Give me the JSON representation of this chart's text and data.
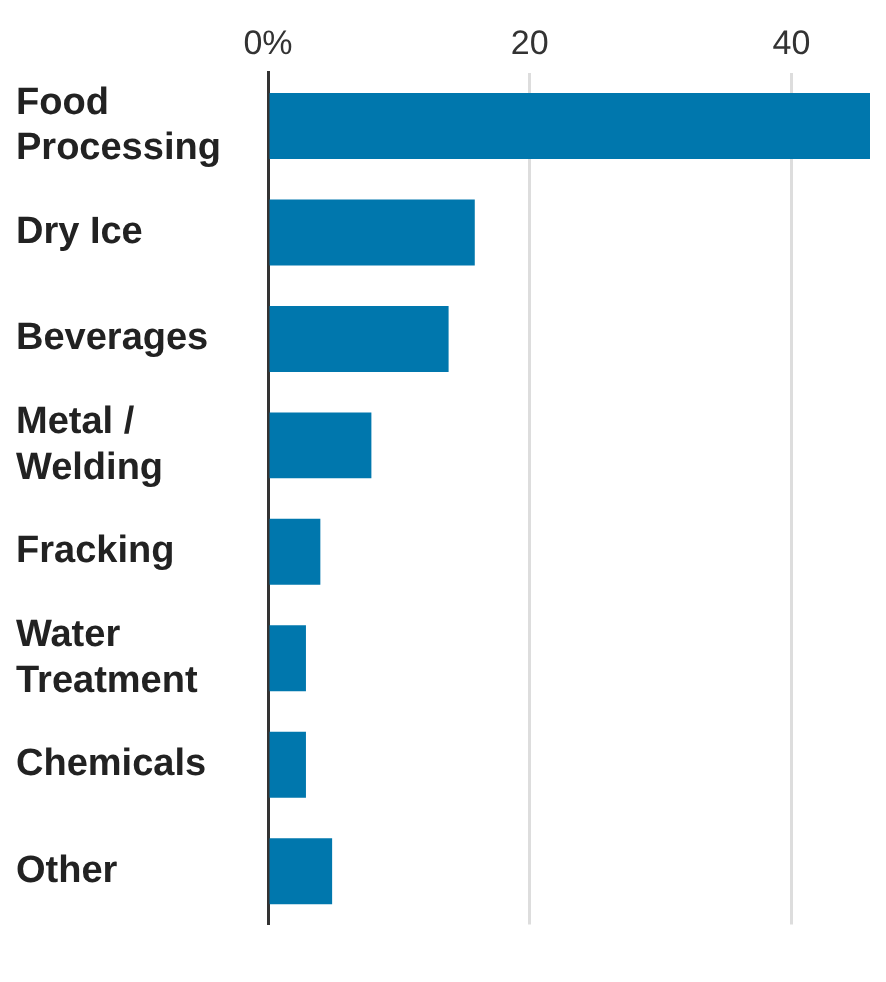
{
  "chart_data": {
    "type": "bar",
    "orientation": "horizontal",
    "categories": [
      "Food Processing",
      "Dry Ice",
      "Beverages",
      "Metal / Welding",
      "Fracking",
      "Water Treatment",
      "Chemicals",
      "Other"
    ],
    "values": [
      46,
      15.8,
      13.8,
      7.9,
      4,
      2.9,
      2.9,
      4.9
    ],
    "color": "#0077ad",
    "xlim": [
      0,
      46
    ],
    "xticks": [
      {
        "value": 0,
        "label": "0%"
      },
      20,
      40
    ],
    "grid": "x"
  }
}
